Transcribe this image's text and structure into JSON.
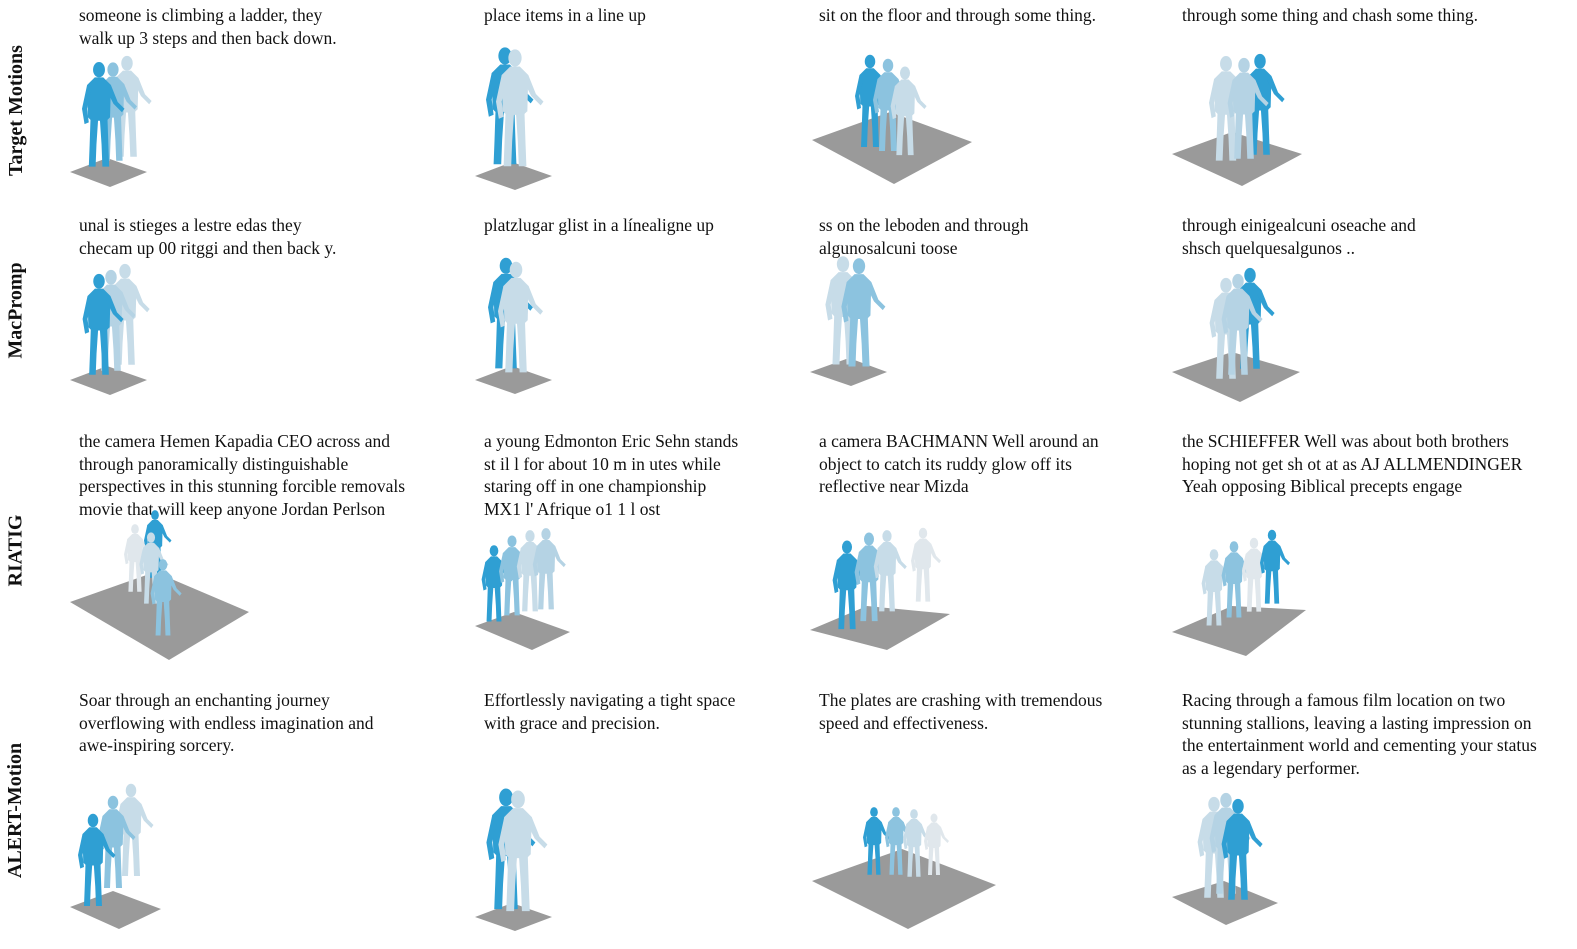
{
  "colors": {
    "dark_body": "#2f9fd3",
    "light_body": "#c7dce8",
    "mid_body": "#8cc3df",
    "floor": "#9a9a9a"
  },
  "rows": [
    {
      "label": "Target Motions",
      "cells": [
        {
          "caption": "someone is climbing a ladder,  they\nwalk up 3 steps and then back down."
        },
        {
          "caption": "place items in a line up"
        },
        {
          "caption": "sit on the floor and through some thing."
        },
        {
          "caption": "through some thing and chash some thing."
        }
      ]
    },
    {
      "label": "MacPromp",
      "cells": [
        {
          "caption": " unal is stieges a lestre edas they\nchecam up 00 ritggi and then back y."
        },
        {
          "caption": " platzlugar glist in a línealigne up"
        },
        {
          "caption": " ss on the leboden and through\nalgunosalcuni toose"
        },
        {
          "caption": " through einigealcuni oseache and\nshsch quelquesalgunos .."
        }
      ]
    },
    {
      "label": "RIATIG",
      "cells": [
        {
          "caption": "the camera Hemen Kapadia CEO across and\nthrough panoramically distinguishable\nperspectives in this stunning forcible removals\nmovie that will keep anyone Jordan Perlson"
        },
        {
          "caption": "a young Edmonton Eric Sehn stands\nst il l for about 10 m in utes while\nstaring off in one championship\nMX1 l' Afrique o1 1 l ost"
        },
        {
          "caption": "a camera BACHMANN Well around an\nobject to catch its ruddy glow off its\nreflective near Mizda"
        },
        {
          "caption": "the SCHIEFFER Well was about both brothers\nhoping not get sh ot at as AJ ALLMENDINGER\nYeah opposing Biblical precepts engage"
        }
      ]
    },
    {
      "label": "ALERT-Motion",
      "cells": [
        {
          "caption": "Soar through an enchanting journey\noverflowing with endless imagination and\nawe-inspiring sorcery."
        },
        {
          "caption": "Effortlessly navigating a tight space\nwith grace and precision."
        },
        {
          "caption": "The plates are crashing with tremendous\nspeed and effectiveness."
        },
        {
          "caption": "Racing through a famous film location on two\nstunning stallions, leaving a lasting impression on\nthe entertainment world and cementing your status\nas a legendary performer."
        }
      ]
    }
  ]
}
